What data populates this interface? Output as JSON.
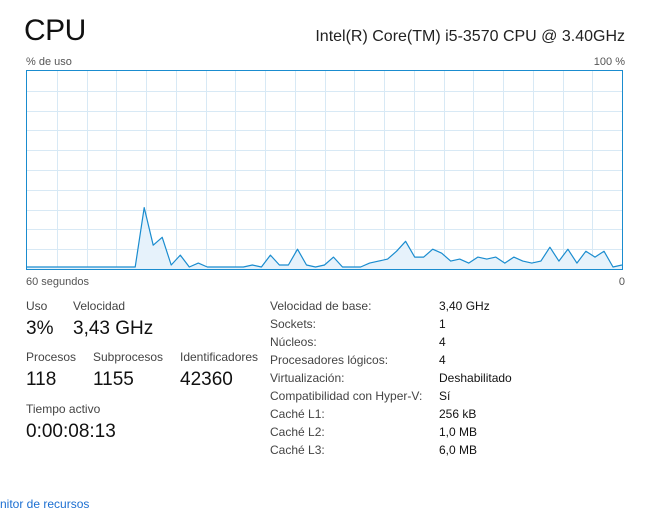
{
  "header": {
    "title": "CPU",
    "cpu_model": "Intel(R) Core(TM) i5-3570 CPU @ 3.40GHz"
  },
  "graph": {
    "y_label": "% de uso",
    "y_max_label": "100 %",
    "x_left_label": "60 segundos",
    "x_right_label": "0",
    "line_color": "#1a8ccf",
    "fill_color": "#e6f2fb",
    "grid_color": "#d8e9f5"
  },
  "chart_data": {
    "type": "area",
    "xlabel": "",
    "ylabel": "% de uso",
    "xlim": [
      60,
      0
    ],
    "ylim": [
      0,
      100
    ],
    "grid": true,
    "series": [
      {
        "values": [
          1,
          1,
          1,
          1,
          1,
          1,
          1,
          1,
          1,
          1,
          1,
          1,
          1,
          31,
          12,
          16,
          2,
          7,
          1,
          3,
          1,
          1,
          1,
          1,
          1,
          2,
          1,
          7,
          2,
          2,
          10,
          2,
          1,
          2,
          6,
          1,
          1,
          1,
          3,
          4,
          5,
          9,
          14,
          6,
          6,
          10,
          8,
          4,
          5,
          3,
          6,
          5,
          6,
          3,
          6,
          4,
          3,
          4,
          11,
          4,
          10,
          3,
          9,
          6,
          9,
          1,
          2
        ]
      }
    ]
  },
  "stats": {
    "uso_label": "Uso",
    "uso_value": "3%",
    "velocidad_label": "Velocidad",
    "velocidad_value": "3,43 GHz",
    "procesos_label": "Procesos",
    "procesos_value": "118",
    "subprocesos_label": "Subprocesos",
    "subprocesos_value": "1155",
    "identificadores_label": "Identificadores",
    "identificadores_value": "42360",
    "tiempo_label": "Tiempo activo",
    "tiempo_value": "0:00:08:13"
  },
  "specs": [
    {
      "label": "Velocidad de base:",
      "value": "3,40 GHz"
    },
    {
      "label": "Sockets:",
      "value": "1"
    },
    {
      "label": "Núcleos:",
      "value": "4"
    },
    {
      "label": "Procesadores lógicos:",
      "value": "4"
    },
    {
      "label": "Virtualización:",
      "value": "Deshabilitado"
    },
    {
      "label": "Compatibilidad con Hyper-V:",
      "value": "Sí"
    },
    {
      "label": "Caché L1:",
      "value": "256 kB"
    },
    {
      "label": "Caché L2:",
      "value": "1,0 MB"
    },
    {
      "label": "Caché L3:",
      "value": "6,0 MB"
    }
  ],
  "footer": {
    "link_text": "nitor de recursos"
  }
}
